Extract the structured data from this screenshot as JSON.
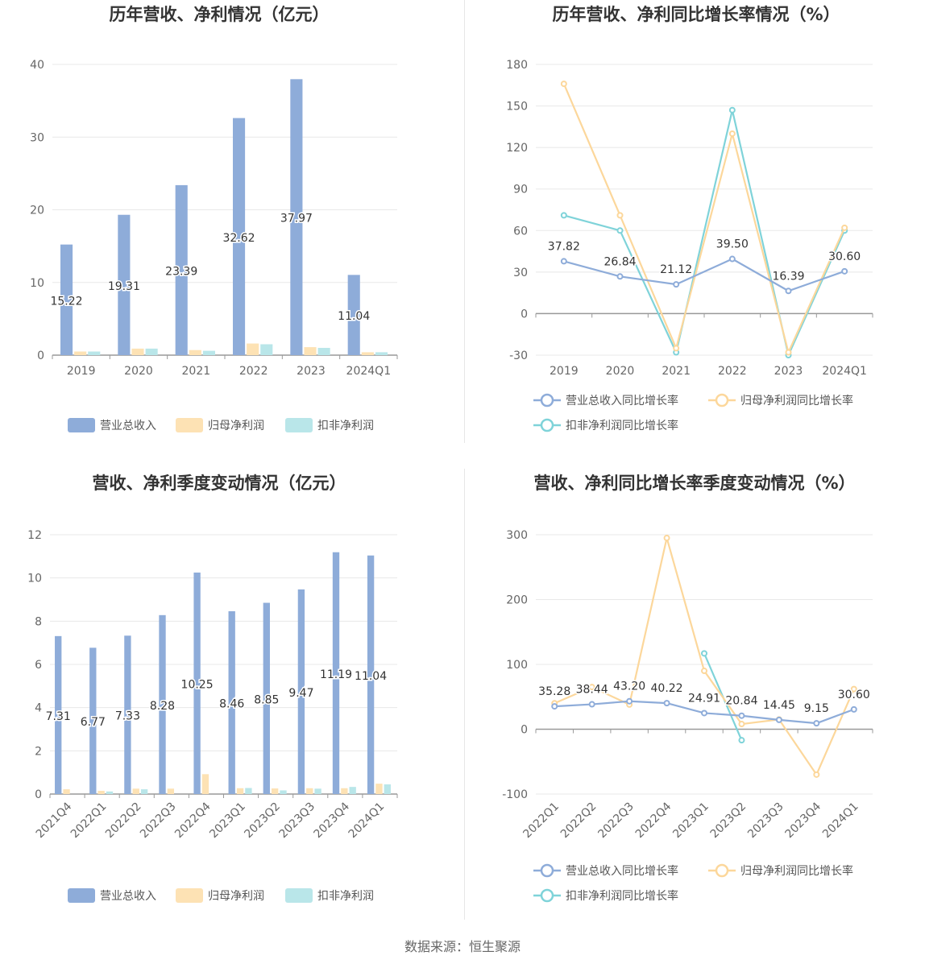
{
  "colors": {
    "revenue": "#8eacd9",
    "net_profit": "#fde2b4",
    "deducted_profit": "#b9e6e9",
    "revenue_line": "#8eacd9",
    "net_profit_line": "#fcd79b",
    "deducted_profit_line": "#7fd3d9",
    "grid": "#e8e8e8",
    "axis": "#999999"
  },
  "source_text": "数据来源：恒生聚源",
  "chart_data": [
    {
      "id": "annual-amount",
      "type": "bar",
      "title": "历年营收、净利情况（亿元）",
      "categories": [
        "2019",
        "2020",
        "2021",
        "2022",
        "2023",
        "2024Q1"
      ],
      "ylim": [
        0,
        40
      ],
      "yticks": [
        0,
        10,
        20,
        30,
        40
      ],
      "grid": true,
      "legend_position": "bottom",
      "series": [
        {
          "name": "营业总收入",
          "color_key": "revenue",
          "values": [
            15.22,
            19.31,
            23.39,
            32.62,
            37.97,
            11.04
          ],
          "labels": [
            "15.22",
            "19.31",
            "23.39",
            "32.62",
            "37.97",
            "11.04"
          ]
        },
        {
          "name": "归母净利润",
          "color_key": "net_profit",
          "values": [
            0.5,
            0.9,
            0.7,
            1.6,
            1.1,
            0.4
          ]
        },
        {
          "name": "扣非净利润",
          "color_key": "deducted_profit",
          "values": [
            0.5,
            0.9,
            0.6,
            1.5,
            1.0,
            0.4
          ]
        }
      ]
    },
    {
      "id": "annual-growth",
      "type": "line",
      "title": "历年营收、净利同比增长率情况（%）",
      "categories": [
        "2019",
        "2020",
        "2021",
        "2022",
        "2023",
        "2024Q1"
      ],
      "ylim": [
        -30,
        180
      ],
      "yticks": [
        -30,
        0,
        30,
        60,
        90,
        120,
        150,
        180
      ],
      "grid": true,
      "legend_position": "bottom",
      "series": [
        {
          "name": "营业总收入同比增长率",
          "color_key": "revenue_line",
          "values": [
            37.82,
            26.84,
            21.12,
            39.5,
            16.39,
            30.6
          ],
          "labels": [
            "37.82",
            "26.84",
            "21.12",
            "39.50",
            "16.39",
            "30.60"
          ]
        },
        {
          "name": "归母净利润同比增长率",
          "color_key": "net_profit_line",
          "values": [
            166,
            71,
            -25,
            130,
            -28,
            62
          ]
        },
        {
          "name": "扣非净利润同比增长率",
          "color_key": "deducted_profit_line",
          "values": [
            71,
            60,
            -28,
            147,
            -30,
            60
          ]
        }
      ]
    },
    {
      "id": "quarterly-amount",
      "type": "bar",
      "title": "营收、净利季度变动情况（亿元）",
      "categories": [
        "2021Q4",
        "2022Q1",
        "2022Q2",
        "2022Q3",
        "2022Q4",
        "2023Q1",
        "2023Q2",
        "2023Q3",
        "2023Q4",
        "2024Q1"
      ],
      "ylim": [
        0,
        12
      ],
      "yticks": [
        0,
        2,
        4,
        6,
        8,
        10,
        12
      ],
      "grid": true,
      "legend_position": "bottom",
      "series": [
        {
          "name": "营业总收入",
          "color_key": "revenue",
          "values": [
            7.31,
            6.77,
            7.33,
            8.28,
            10.25,
            8.46,
            8.85,
            9.47,
            11.19,
            11.04
          ],
          "labels": [
            "7.31",
            "6.77",
            "7.33",
            "8.28",
            "10.25",
            "8.46",
            "8.85",
            "9.47",
            "11.19",
            "11.04"
          ]
        },
        {
          "name": "归母净利润",
          "color_key": "net_profit",
          "values": [
            0.22,
            0.15,
            0.25,
            0.25,
            0.92,
            0.27,
            0.26,
            0.27,
            0.27,
            0.48
          ]
        },
        {
          "name": "扣非净利润",
          "color_key": "deducted_profit",
          "values": [
            0.0,
            0.12,
            0.22,
            0.0,
            0.0,
            0.28,
            0.17,
            0.25,
            0.33,
            0.45
          ]
        }
      ]
    },
    {
      "id": "quarterly-growth",
      "type": "line",
      "title": "营收、净利同比增长率季度变动情况（%）",
      "categories": [
        "2022Q1",
        "2022Q2",
        "2022Q3",
        "2022Q4",
        "2023Q1",
        "2023Q2",
        "2023Q3",
        "2023Q4",
        "2024Q1"
      ],
      "ylim": [
        -100,
        300
      ],
      "yticks": [
        -100,
        0,
        100,
        200,
        300
      ],
      "grid": true,
      "legend_position": "bottom",
      "series": [
        {
          "name": "营业总收入同比增长率",
          "color_key": "revenue_line",
          "values": [
            35.28,
            38.44,
            43.2,
            40.22,
            24.91,
            20.84,
            14.45,
            9.15,
            30.6
          ],
          "labels": [
            "35.28",
            "38.44",
            "43.20",
            "40.22",
            "24.91",
            "20.84",
            "14.45",
            "9.15",
            "30.60"
          ]
        },
        {
          "name": "归母净利润同比增长率",
          "color_key": "net_profit_line",
          "values": [
            40,
            65,
            38,
            295,
            90,
            8,
            15,
            -70,
            62
          ]
        },
        {
          "name": "扣非净利润同比增长率",
          "color_key": "deducted_profit_line",
          "values": [
            null,
            null,
            null,
            null,
            117,
            -17,
            null,
            null,
            null
          ]
        }
      ]
    }
  ]
}
